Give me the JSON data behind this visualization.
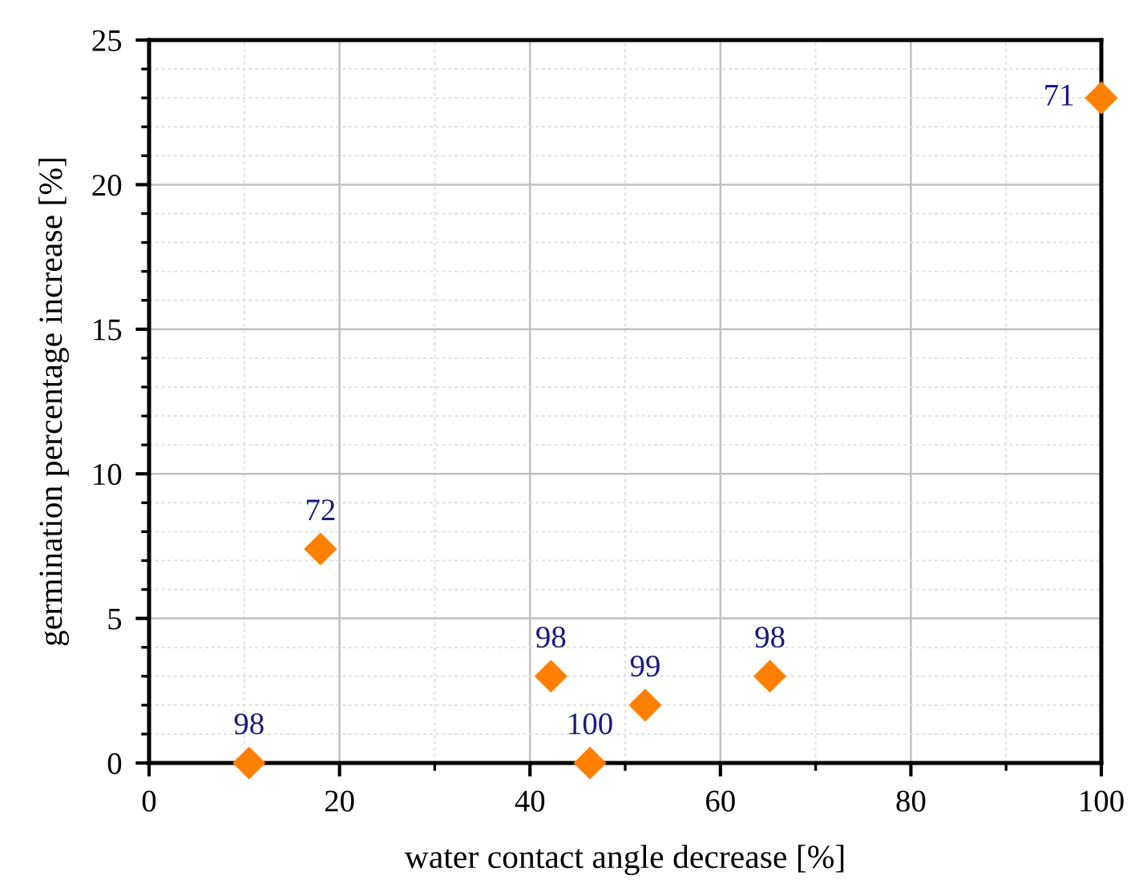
{
  "chart_data": {
    "type": "scatter",
    "xlabel": "water contact angle decrease [%]",
    "ylabel": "germination percentage increase [%]",
    "x": [
      10.5,
      18.0,
      42.2,
      46.3,
      52.1,
      65.2,
      100
    ],
    "series": [
      {
        "color": "#ff8000",
        "values": [
          0,
          7.4,
          3,
          0,
          2,
          3,
          23
        ]
      }
    ],
    "marker": "diamond",
    "xlim": [
      0,
      100
    ],
    "xticks": [
      0,
      20,
      40,
      60,
      80,
      100
    ],
    "ylim": [
      0,
      25
    ],
    "yticks": [
      0,
      5,
      10,
      15,
      20,
      25
    ],
    "grid": true,
    "annotations": [
      {
        "text": "98",
        "x": 10.5,
        "y": 0
      },
      {
        "text": "72",
        "x": 18.0,
        "y": 7.4
      },
      {
        "text": "98",
        "x": 42.2,
        "y": 3
      },
      {
        "text": "100",
        "x": 46.3,
        "y": 0
      },
      {
        "text": "99",
        "x": 52.1,
        "y": 2
      },
      {
        "text": "98",
        "x": 65.2,
        "y": 3
      },
      {
        "text": "71",
        "x": 100,
        "y": 23
      }
    ]
  }
}
